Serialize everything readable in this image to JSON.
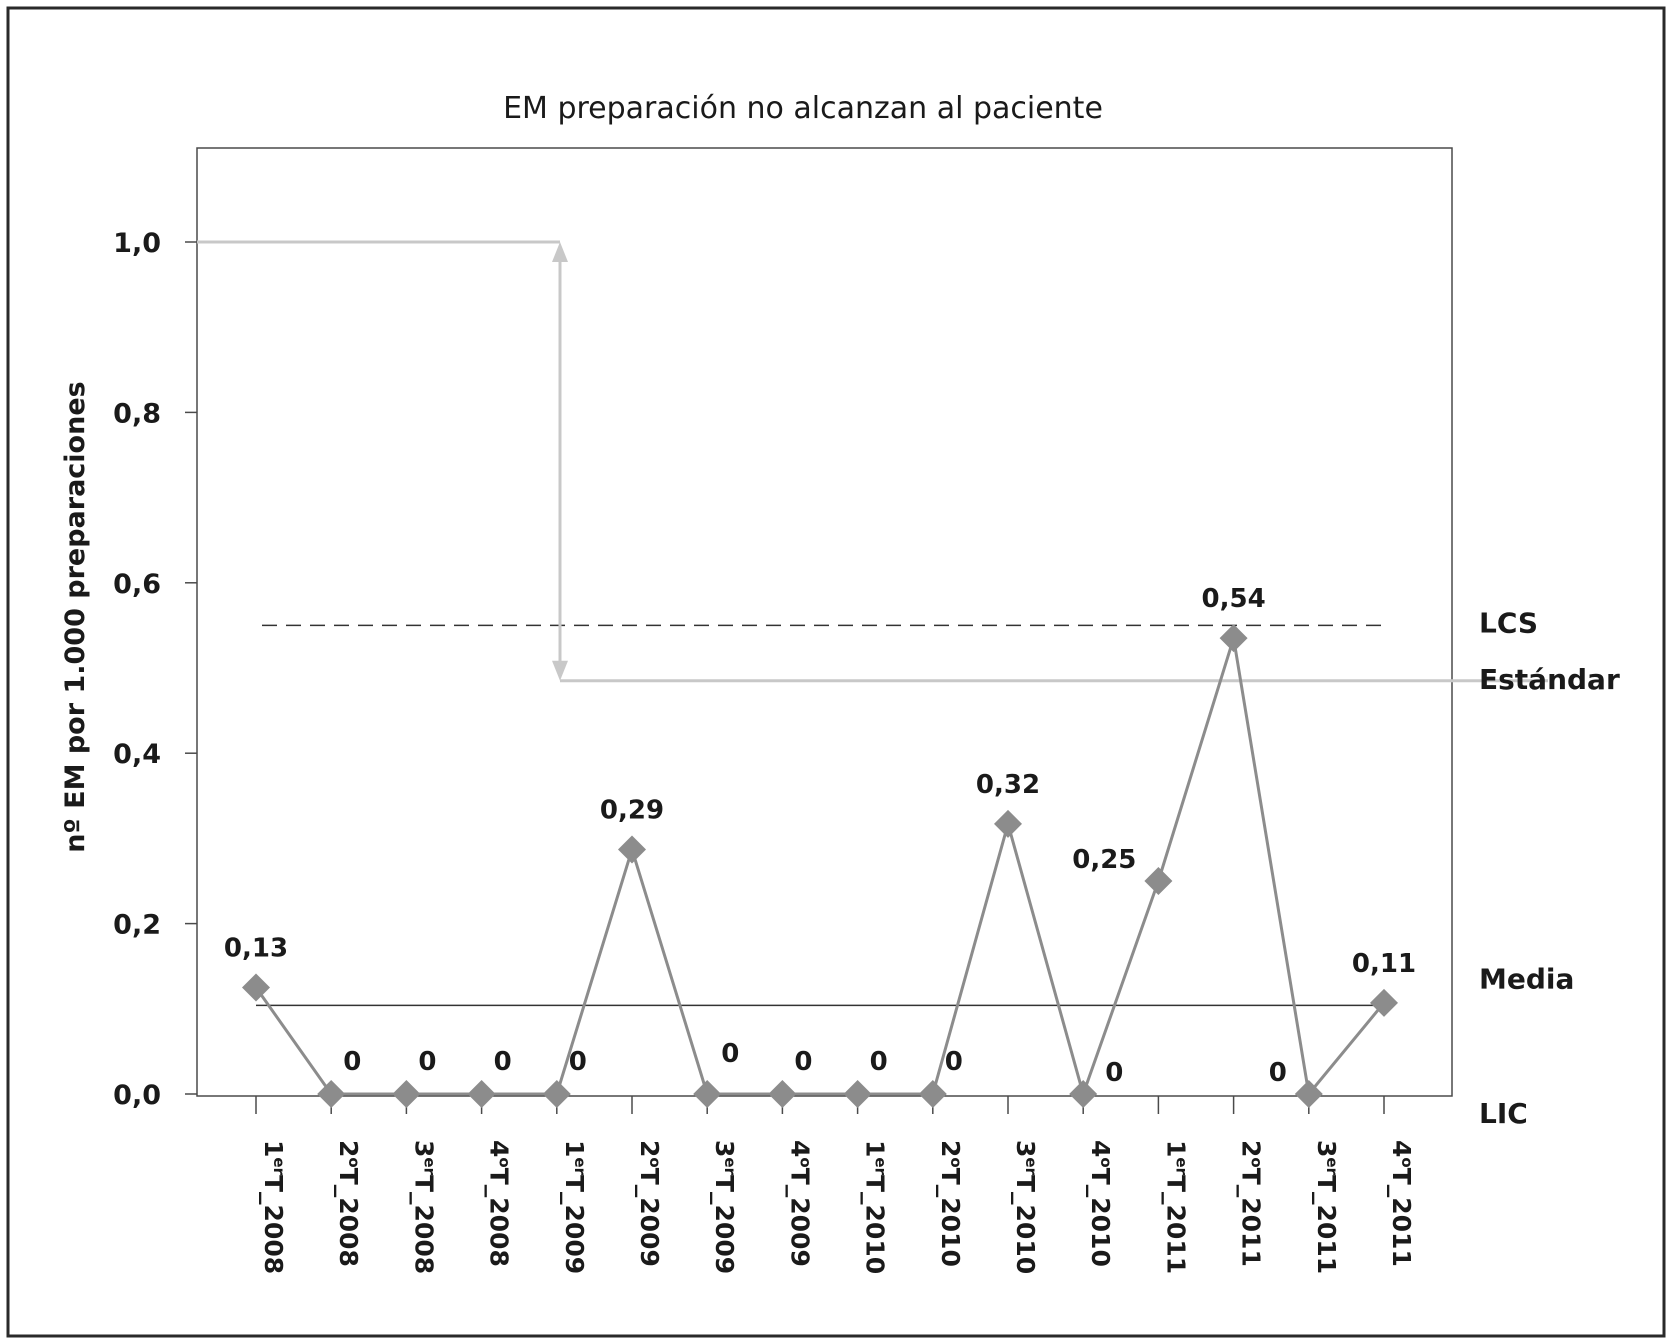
{
  "chart_data": {
    "type": "line",
    "title": "EM preparación no alcanzan al paciente",
    "ylabel": "nº EM por 1.000 preparaciones",
    "xlabel": "",
    "ylim": [
      0,
      1.1
    ],
    "yticks": [
      {
        "value": 0.0,
        "label": "0,0"
      },
      {
        "value": 0.2,
        "label": "0,2"
      },
      {
        "value": 0.4,
        "label": "0,4"
      },
      {
        "value": 0.6,
        "label": "0,6"
      },
      {
        "value": 0.8,
        "label": "0,8"
      },
      {
        "value": 1.0,
        "label": "1,0"
      }
    ],
    "categories": [
      {
        "num": "1",
        "sup": "er",
        "rest": "T_2008"
      },
      {
        "num": "2",
        "sup": "o",
        "rest": "T_2008"
      },
      {
        "num": "3",
        "sup": "er",
        "rest": "T_2008"
      },
      {
        "num": "4",
        "sup": "o",
        "rest": "T_2008"
      },
      {
        "num": "1",
        "sup": "er",
        "rest": "T_2009"
      },
      {
        "num": "2",
        "sup": "o",
        "rest": "T_2009"
      },
      {
        "num": "3",
        "sup": "er",
        "rest": "T_2009"
      },
      {
        "num": "4",
        "sup": "o",
        "rest": "T_2009"
      },
      {
        "num": "1",
        "sup": "er",
        "rest": "T_2010"
      },
      {
        "num": "2",
        "sup": "o",
        "rest": "T_2010"
      },
      {
        "num": "3",
        "sup": "er",
        "rest": "T_2010"
      },
      {
        "num": "4",
        "sup": "o",
        "rest": "T_2010"
      },
      {
        "num": "1",
        "sup": "er",
        "rest": "T_2011"
      },
      {
        "num": "2",
        "sup": "o",
        "rest": "T_2011"
      },
      {
        "num": "3",
        "sup": "er",
        "rest": "T_2011"
      },
      {
        "num": "4",
        "sup": "o",
        "rest": "T_2011"
      }
    ],
    "series": [
      {
        "values": [
          0.125,
          0,
          0,
          0,
          0,
          0.287,
          0,
          0,
          0,
          0,
          0.317,
          0,
          0.25,
          0.535,
          0,
          0.107
        ],
        "labels": [
          "0,13",
          "0",
          "0",
          "0",
          "0",
          "0,29",
          "0",
          "0",
          "0",
          "0",
          "0,32",
          "0",
          "0,25",
          "0,54",
          "0",
          "0,11"
        ],
        "label_pos": [
          "above",
          "above",
          "above",
          "above",
          "above",
          "above",
          "above-right",
          "above",
          "above",
          "above",
          "above",
          "right",
          "left",
          "above",
          "left",
          "above"
        ],
        "color": "#8c8c8c"
      }
    ],
    "reference_lines": [
      {
        "name": "LCS",
        "value": 0.55,
        "style": "dashed",
        "color": "#333333"
      },
      {
        "name": "Estándar",
        "value": 0.485,
        "style": "solid",
        "color": "#c8c8c8"
      },
      {
        "name": "Media",
        "value": 0.104,
        "style": "solid",
        "color": "#333333"
      },
      {
        "name": "LIC",
        "value": 0.0,
        "style": "none",
        "color": "#333333"
      }
    ],
    "target_line": {
      "value": 1.0,
      "color": "#c8c8c8"
    },
    "arrow": {
      "from": 0.485,
      "to": 1.0,
      "color": "#c8c8c8"
    },
    "grid": false,
    "legend": "none"
  }
}
